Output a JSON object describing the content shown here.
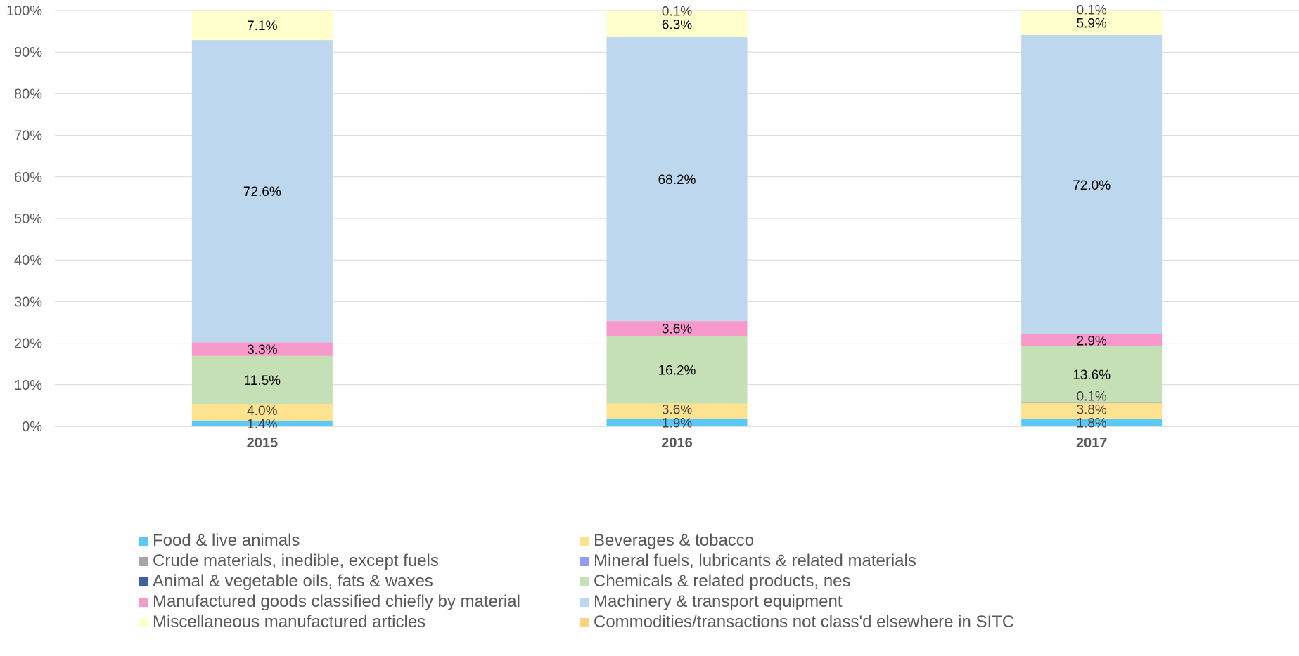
{
  "chart_data": {
    "type": "bar",
    "stacked": true,
    "percent_stacked": true,
    "categories": [
      "2015",
      "2016",
      "2017"
    ],
    "ylim": [
      0,
      100
    ],
    "yticks": [
      "0%",
      "10%",
      "20%",
      "30%",
      "40%",
      "50%",
      "60%",
      "70%",
      "80%",
      "90%",
      "100%"
    ],
    "grid": true,
    "legend_position": "bottom",
    "series": [
      {
        "name": "Food & live animals",
        "color": "#5bc8f5",
        "values": [
          1.4,
          1.9,
          1.8
        ],
        "labels": [
          "1.4%",
          "1.9%",
          "1.8%"
        ]
      },
      {
        "name": "Beverages & tobacco",
        "color": "#fde28f",
        "values": [
          4.0,
          3.6,
          3.8
        ],
        "labels": [
          "4.0%",
          "3.6%",
          "3.8%"
        ]
      },
      {
        "name": "Crude materials, inedible, except fuels",
        "color": "#a6a6a6",
        "values": [
          0,
          0,
          0.1
        ],
        "labels": [
          "",
          "",
          "0.1%"
        ]
      },
      {
        "name": "Mineral fuels, lubricants & related materials",
        "color": "#9999ee",
        "values": [
          0,
          0,
          0
        ],
        "labels": [
          "",
          "",
          ""
        ]
      },
      {
        "name": "Animal & vegetable oils, fats & waxes",
        "color": "#3e5fa8",
        "values": [
          0,
          0,
          0
        ],
        "labels": [
          "",
          "",
          ""
        ]
      },
      {
        "name": "Chemicals & related products, nes",
        "color": "#c5e0b4",
        "values": [
          11.5,
          16.2,
          13.6
        ],
        "labels": [
          "11.5%",
          "16.2%",
          "13.6%"
        ]
      },
      {
        "name": "Manufactured goods classified chiefly by material",
        "color": "#f899cc",
        "values": [
          3.3,
          3.6,
          2.9
        ],
        "labels": [
          "3.3%",
          "3.6%",
          "2.9%"
        ]
      },
      {
        "name": "Machinery & transport equipment",
        "color": "#bdd7ee",
        "values": [
          72.6,
          68.2,
          72.0
        ],
        "labels": [
          "72.6%",
          "68.2%",
          "72.0%"
        ]
      },
      {
        "name": "Miscellaneous manufactured articles",
        "color": "#ffffcc",
        "values": [
          7.1,
          6.3,
          5.9
        ],
        "labels": [
          "7.1%",
          "6.3%",
          "5.9%"
        ]
      },
      {
        "name": "Commodities/transactions not class'd elsewhere in SITC",
        "color": "#ffd27f",
        "values": [
          0,
          0.1,
          0
        ],
        "labels": [
          "",
          "0.1%",
          ""
        ]
      }
    ],
    "extra_labels": [
      {
        "category": "2017",
        "text": "0.1%"
      }
    ]
  }
}
